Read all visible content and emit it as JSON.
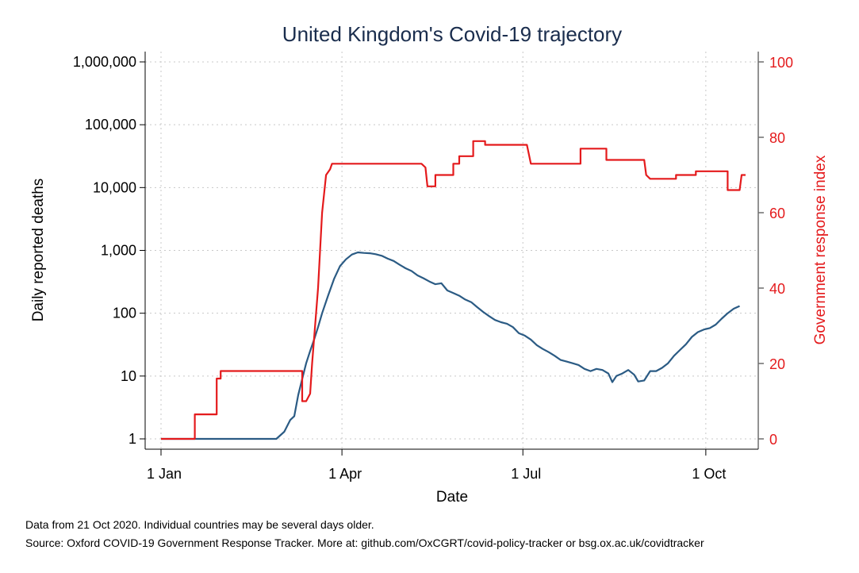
{
  "chart_data": {
    "type": "line",
    "title": "United Kingdom's Covid-19 trajectory",
    "xlabel": "Date",
    "ylabel_left": "Daily reported deaths",
    "ylabel_right": "Government response index",
    "x_range": [
      "2020-01-01",
      "2020-10-21"
    ],
    "x_ticks": [
      {
        "date": "2020-01-01",
        "label": "1 Jan"
      },
      {
        "date": "2020-04-01",
        "label": "1 Apr"
      },
      {
        "date": "2020-07-01",
        "label": "1 Jul"
      },
      {
        "date": "2020-10-01",
        "label": "1 Oct"
      }
    ],
    "y_left": {
      "scale": "log",
      "range": [
        1,
        1000000
      ],
      "ticks": [
        {
          "value": 1,
          "label": "1"
        },
        {
          "value": 10,
          "label": "10"
        },
        {
          "value": 100,
          "label": "100"
        },
        {
          "value": 1000,
          "label": "1,000"
        },
        {
          "value": 10000,
          "label": "10,000"
        },
        {
          "value": 100000,
          "label": "100,000"
        },
        {
          "value": 1000000,
          "label": "1,000,000"
        }
      ]
    },
    "y_right": {
      "scale": "linear",
      "range": [
        0,
        100
      ],
      "ticks": [
        {
          "value": 0,
          "label": "0"
        },
        {
          "value": 20,
          "label": "20"
        },
        {
          "value": 40,
          "label": "40"
        },
        {
          "value": 60,
          "label": "60"
        },
        {
          "value": 80,
          "label": "80"
        },
        {
          "value": 100,
          "label": "100"
        }
      ]
    },
    "grid": true,
    "series": [
      {
        "axis": "left",
        "color": "#2b5b84",
        "points": [
          [
            "2020-01-01",
            1
          ],
          [
            "2020-02-28",
            1
          ],
          [
            "2020-03-03",
            1.3
          ],
          [
            "2020-03-06",
            2
          ],
          [
            "2020-03-08",
            2.3
          ],
          [
            "2020-03-10",
            5
          ],
          [
            "2020-03-12",
            9
          ],
          [
            "2020-03-14",
            16
          ],
          [
            "2020-03-16",
            25
          ],
          [
            "2020-03-18",
            38
          ],
          [
            "2020-03-20",
            60
          ],
          [
            "2020-03-22",
            100
          ],
          [
            "2020-03-25",
            190
          ],
          [
            "2020-03-28",
            350
          ],
          [
            "2020-03-31",
            560
          ],
          [
            "2020-04-03",
            720
          ],
          [
            "2020-04-06",
            860
          ],
          [
            "2020-04-09",
            930
          ],
          [
            "2020-04-12",
            910
          ],
          [
            "2020-04-15",
            900
          ],
          [
            "2020-04-18",
            870
          ],
          [
            "2020-04-21",
            820
          ],
          [
            "2020-04-24",
            740
          ],
          [
            "2020-04-27",
            680
          ],
          [
            "2020-04-30",
            590
          ],
          [
            "2020-05-03",
            520
          ],
          [
            "2020-05-06",
            470
          ],
          [
            "2020-05-09",
            400
          ],
          [
            "2020-05-12",
            360
          ],
          [
            "2020-05-15",
            320
          ],
          [
            "2020-05-18",
            290
          ],
          [
            "2020-05-21",
            300
          ],
          [
            "2020-05-24",
            230
          ],
          [
            "2020-05-27",
            210
          ],
          [
            "2020-05-30",
            190
          ],
          [
            "2020-06-02",
            165
          ],
          [
            "2020-06-05",
            150
          ],
          [
            "2020-06-08",
            125
          ],
          [
            "2020-06-11",
            105
          ],
          [
            "2020-06-14",
            90
          ],
          [
            "2020-06-17",
            78
          ],
          [
            "2020-06-20",
            72
          ],
          [
            "2020-06-23",
            68
          ],
          [
            "2020-06-26",
            60
          ],
          [
            "2020-06-29",
            48
          ],
          [
            "2020-07-02",
            44
          ],
          [
            "2020-07-05",
            38
          ],
          [
            "2020-07-08",
            31
          ],
          [
            "2020-07-11",
            27
          ],
          [
            "2020-07-14",
            24
          ],
          [
            "2020-07-17",
            21
          ],
          [
            "2020-07-20",
            18
          ],
          [
            "2020-07-23",
            17
          ],
          [
            "2020-07-26",
            16
          ],
          [
            "2020-07-29",
            15
          ],
          [
            "2020-08-01",
            13
          ],
          [
            "2020-08-04",
            12
          ],
          [
            "2020-08-07",
            13
          ],
          [
            "2020-08-10",
            12.5
          ],
          [
            "2020-08-13",
            11
          ],
          [
            "2020-08-15",
            8
          ],
          [
            "2020-08-17",
            10
          ],
          [
            "2020-08-20",
            11
          ],
          [
            "2020-08-23",
            12.5
          ],
          [
            "2020-08-26",
            10.5
          ],
          [
            "2020-08-28",
            8.2
          ],
          [
            "2020-08-31",
            8.5
          ],
          [
            "2020-09-03",
            12
          ],
          [
            "2020-09-06",
            12
          ],
          [
            "2020-09-09",
            13.5
          ],
          [
            "2020-09-12",
            16
          ],
          [
            "2020-09-15",
            21
          ],
          [
            "2020-09-18",
            26
          ],
          [
            "2020-09-21",
            32
          ],
          [
            "2020-09-24",
            42
          ],
          [
            "2020-09-27",
            50
          ],
          [
            "2020-09-30",
            55
          ],
          [
            "2020-10-03",
            58
          ],
          [
            "2020-10-06",
            66
          ],
          [
            "2020-10-09",
            82
          ],
          [
            "2020-10-12",
            100
          ],
          [
            "2020-10-15",
            118
          ],
          [
            "2020-10-18",
            130
          ]
        ]
      },
      {
        "axis": "right",
        "color": "#e41a1c",
        "points": [
          [
            "2020-01-01",
            0
          ],
          [
            "2020-01-18",
            0
          ],
          [
            "2020-01-18",
            6.5
          ],
          [
            "2020-01-29",
            6.5
          ],
          [
            "2020-01-29",
            16
          ],
          [
            "2020-01-31",
            16
          ],
          [
            "2020-01-31",
            18
          ],
          [
            "2020-03-12",
            18
          ],
          [
            "2020-03-12",
            10
          ],
          [
            "2020-03-14",
            10
          ],
          [
            "2020-03-16",
            12
          ],
          [
            "2020-03-17",
            20
          ],
          [
            "2020-03-20",
            40
          ],
          [
            "2020-03-22",
            60
          ],
          [
            "2020-03-24",
            70
          ],
          [
            "2020-03-26",
            71.5
          ],
          [
            "2020-03-27",
            73
          ],
          [
            "2020-05-11",
            73
          ],
          [
            "2020-05-13",
            72
          ],
          [
            "2020-05-14",
            67
          ],
          [
            "2020-05-18",
            67
          ],
          [
            "2020-05-18",
            70
          ],
          [
            "2020-05-27",
            70
          ],
          [
            "2020-05-27",
            73
          ],
          [
            "2020-05-30",
            73
          ],
          [
            "2020-05-30",
            75
          ],
          [
            "2020-06-06",
            75
          ],
          [
            "2020-06-06",
            79
          ],
          [
            "2020-06-12",
            79
          ],
          [
            "2020-06-12",
            78
          ],
          [
            "2020-07-03",
            78
          ],
          [
            "2020-07-05",
            73
          ],
          [
            "2020-07-30",
            73
          ],
          [
            "2020-07-30",
            77
          ],
          [
            "2020-08-12",
            77
          ],
          [
            "2020-08-12",
            74
          ],
          [
            "2020-08-31",
            74
          ],
          [
            "2020-09-01",
            70
          ],
          [
            "2020-09-03",
            69
          ],
          [
            "2020-09-16",
            69
          ],
          [
            "2020-09-16",
            70
          ],
          [
            "2020-09-26",
            70
          ],
          [
            "2020-09-26",
            71
          ],
          [
            "2020-10-12",
            71
          ],
          [
            "2020-10-12",
            66
          ],
          [
            "2020-10-18",
            66
          ],
          [
            "2020-10-19",
            70
          ],
          [
            "2020-10-21",
            70
          ]
        ]
      }
    ],
    "notes": [
      "Data from 21 Oct 2020. Individual countries may be several days older.",
      "Source: Oxford COVID-19 Government Response Tracker. More at: github.com/OxCGRT/covid-policy-tracker or bsg.ox.ac.uk/covidtracker"
    ]
  }
}
